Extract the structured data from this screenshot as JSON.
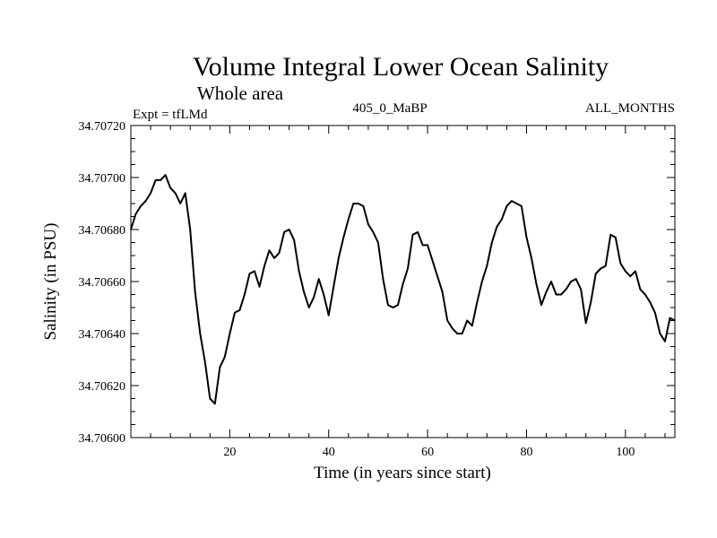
{
  "chart_data": {
    "type": "line",
    "title": "Volume Integral Lower Ocean Salinity",
    "subtitle": "Whole area",
    "experiment_label": "Expt = tfLMd",
    "run_label": "405_0_MaBP",
    "period_label": "ALL_MONTHS",
    "xlabel": "Time (in years since start)",
    "ylabel": "Salinity (in PSU)",
    "xlim": [
      0,
      110
    ],
    "ylim": [
      34.706,
      34.7072
    ],
    "x_ticks": [
      20,
      40,
      60,
      80,
      100
    ],
    "x_tick_labels": [
      "20",
      "40",
      "60",
      "80",
      "100"
    ],
    "y_ticks": [
      34.706,
      34.7062,
      34.7064,
      34.7066,
      34.7068,
      34.707,
      34.7072
    ],
    "y_tick_labels": [
      "34.70600",
      "34.70620",
      "34.70640",
      "34.70660",
      "34.70680",
      "34.70700",
      "34.70720"
    ],
    "grid": false,
    "series": [
      {
        "name": "Salinity",
        "x": [
          0,
          1,
          2,
          3,
          4,
          5,
          6,
          7,
          8,
          9,
          10,
          11,
          12,
          13,
          14,
          15,
          16,
          17,
          18,
          19,
          20,
          21,
          22,
          23,
          24,
          25,
          26,
          27,
          28,
          29,
          30,
          31,
          32,
          33,
          34,
          35,
          36,
          37,
          38,
          39,
          40,
          41,
          42,
          43,
          44,
          45,
          46,
          47,
          48,
          49,
          50,
          51,
          52,
          53,
          54,
          55,
          56,
          57,
          58,
          59,
          60,
          61,
          62,
          63,
          64,
          65,
          66,
          67,
          68,
          69,
          70,
          71,
          72,
          73,
          74,
          75,
          76,
          77,
          78,
          79,
          80,
          81,
          82,
          83,
          84,
          85,
          86,
          87,
          88,
          89,
          90,
          91,
          92,
          93,
          94,
          95,
          96,
          97,
          98,
          99,
          100,
          101,
          102,
          103,
          104,
          105,
          106,
          107,
          108,
          109,
          110
        ],
        "y": [
          34.7068,
          34.70686,
          34.70689,
          34.70691,
          34.70694,
          34.70699,
          34.70699,
          34.70701,
          34.70696,
          34.70694,
          34.7069,
          34.70694,
          34.7068,
          34.70656,
          34.7064,
          34.70629,
          34.70615,
          34.70613,
          34.70627,
          34.70631,
          34.7064,
          34.70648,
          34.70649,
          34.70655,
          34.70663,
          34.70664,
          34.70658,
          34.70666,
          34.70672,
          34.70669,
          34.70671,
          34.70679,
          34.7068,
          34.70676,
          34.70664,
          34.70656,
          34.7065,
          34.70654,
          34.70661,
          34.70655,
          34.70647,
          34.70658,
          34.70669,
          34.70677,
          34.70684,
          34.7069,
          34.7069,
          34.70689,
          34.70682,
          34.70679,
          34.70675,
          34.70661,
          34.70651,
          34.7065,
          34.70651,
          34.70659,
          34.70665,
          34.70678,
          34.70679,
          34.70674,
          34.70674,
          34.70668,
          34.70662,
          34.70656,
          34.70645,
          34.70642,
          34.7064,
          34.7064,
          34.70645,
          34.70643,
          34.70652,
          34.7066,
          34.70666,
          34.70675,
          34.70681,
          34.70684,
          34.70689,
          34.70691,
          34.7069,
          34.70689,
          34.70677,
          34.70669,
          34.70659,
          34.70651,
          34.70656,
          34.7066,
          34.70655,
          34.70655,
          34.70657,
          34.7066,
          34.70661,
          34.70657,
          34.70644,
          34.70652,
          34.70663,
          34.70665,
          34.70666,
          34.70678,
          34.70677,
          34.70667,
          34.70664,
          34.70662,
          34.70664,
          34.70657,
          34.70655,
          34.70652,
          34.70648,
          34.7064,
          34.70637,
          34.70646,
          34.70645
        ]
      }
    ]
  }
}
